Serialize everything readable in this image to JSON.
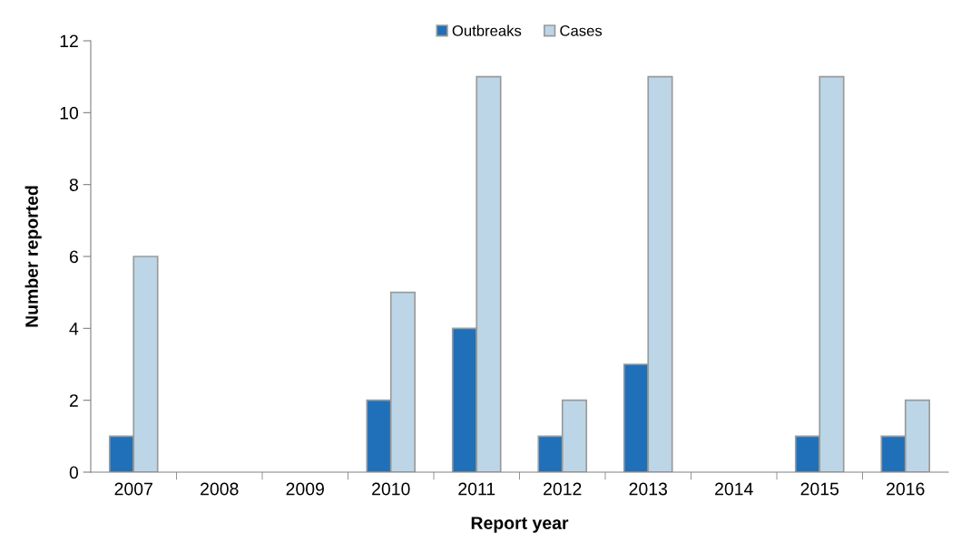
{
  "chart_data": {
    "type": "bar",
    "xlabel": "Report year",
    "ylabel": "Number reported",
    "categories": [
      "2007",
      "2008",
      "2009",
      "2010",
      "2011",
      "2012",
      "2013",
      "2014",
      "2015",
      "2016"
    ],
    "series": [
      {
        "name": "Outbreaks",
        "color": "#1f70b8",
        "values": [
          1,
          0,
          0,
          2,
          4,
          1,
          3,
          0,
          1,
          1
        ]
      },
      {
        "name": "Cases",
        "color": "#bcd6e8",
        "values": [
          6,
          0,
          0,
          5,
          11,
          2,
          11,
          0,
          11,
          2
        ]
      }
    ],
    "ylim": [
      0,
      12
    ],
    "yticks": [
      0,
      2,
      4,
      6,
      8,
      10,
      12
    ],
    "grid": false,
    "legend": "top"
  }
}
